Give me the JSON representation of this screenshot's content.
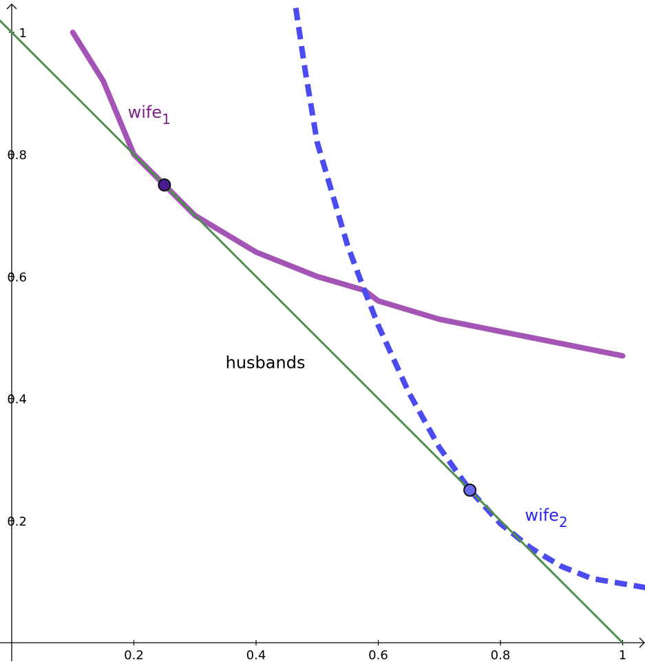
{
  "chart_data": {
    "type": "line",
    "title": "",
    "xlabel": "",
    "ylabel": "",
    "xlim": [
      -0.02,
      1.04
    ],
    "ylim": [
      -0.02,
      1.06
    ],
    "grid": false,
    "x_ticks": [
      0.2,
      0.4,
      0.6,
      0.8,
      1
    ],
    "x_tick_labels": [
      "0.2",
      "0.4",
      "0.6",
      "0.8",
      "1"
    ],
    "y_ticks": [
      0.2,
      0.4,
      0.6,
      0.8,
      1
    ],
    "y_tick_labels": [
      "0.2",
      "0.4",
      "0.6",
      "0.8",
      "1"
    ],
    "series": [
      {
        "style": "solid-thick",
        "color": "#a454b4",
        "x": [
          0.1,
          0.15,
          0.2,
          0.25,
          0.3,
          0.4,
          0.5,
          0.5774,
          0.6,
          0.7,
          0.8,
          0.9,
          1.0
        ],
        "y": [
          1.0,
          0.92,
          0.8,
          0.75,
          0.7,
          0.64,
          0.6,
          0.5774,
          0.56,
          0.53,
          0.51,
          0.49,
          0.47
        ]
      },
      {
        "style": "dashed",
        "color": "#4b4bf0",
        "x": [
          0.465,
          0.48,
          0.5,
          0.55,
          0.5774,
          0.6,
          0.65,
          0.7,
          0.75,
          0.8,
          0.85,
          0.9,
          0.95,
          1.04
        ],
        "y": [
          1.04,
          0.94,
          0.82,
          0.65,
          0.5774,
          0.52,
          0.41,
          0.32,
          0.25,
          0.195,
          0.155,
          0.125,
          0.105,
          0.09
        ]
      },
      {
        "style": "solid",
        "color": "#4e8f4e",
        "x": [
          -0.02,
          1.0
        ],
        "y": [
          1.02,
          0.0
        ]
      }
    ],
    "points": [
      {
        "x": 0.25,
        "y": 0.75,
        "color": "#4a1d8c"
      },
      {
        "x": 0.75,
        "y": 0.25,
        "color": "#6a6aef"
      }
    ],
    "annotations": [
      {
        "text": "wife",
        "subscript": "1",
        "x": 0.19,
        "y": 0.86,
        "color": "#7a2087"
      },
      {
        "text": "wife",
        "subscript": "2",
        "x": 0.84,
        "y": 0.2,
        "color": "#2626f0"
      },
      {
        "text": "husbands",
        "x": 0.35,
        "y": 0.45,
        "color": "#000000"
      }
    ]
  }
}
